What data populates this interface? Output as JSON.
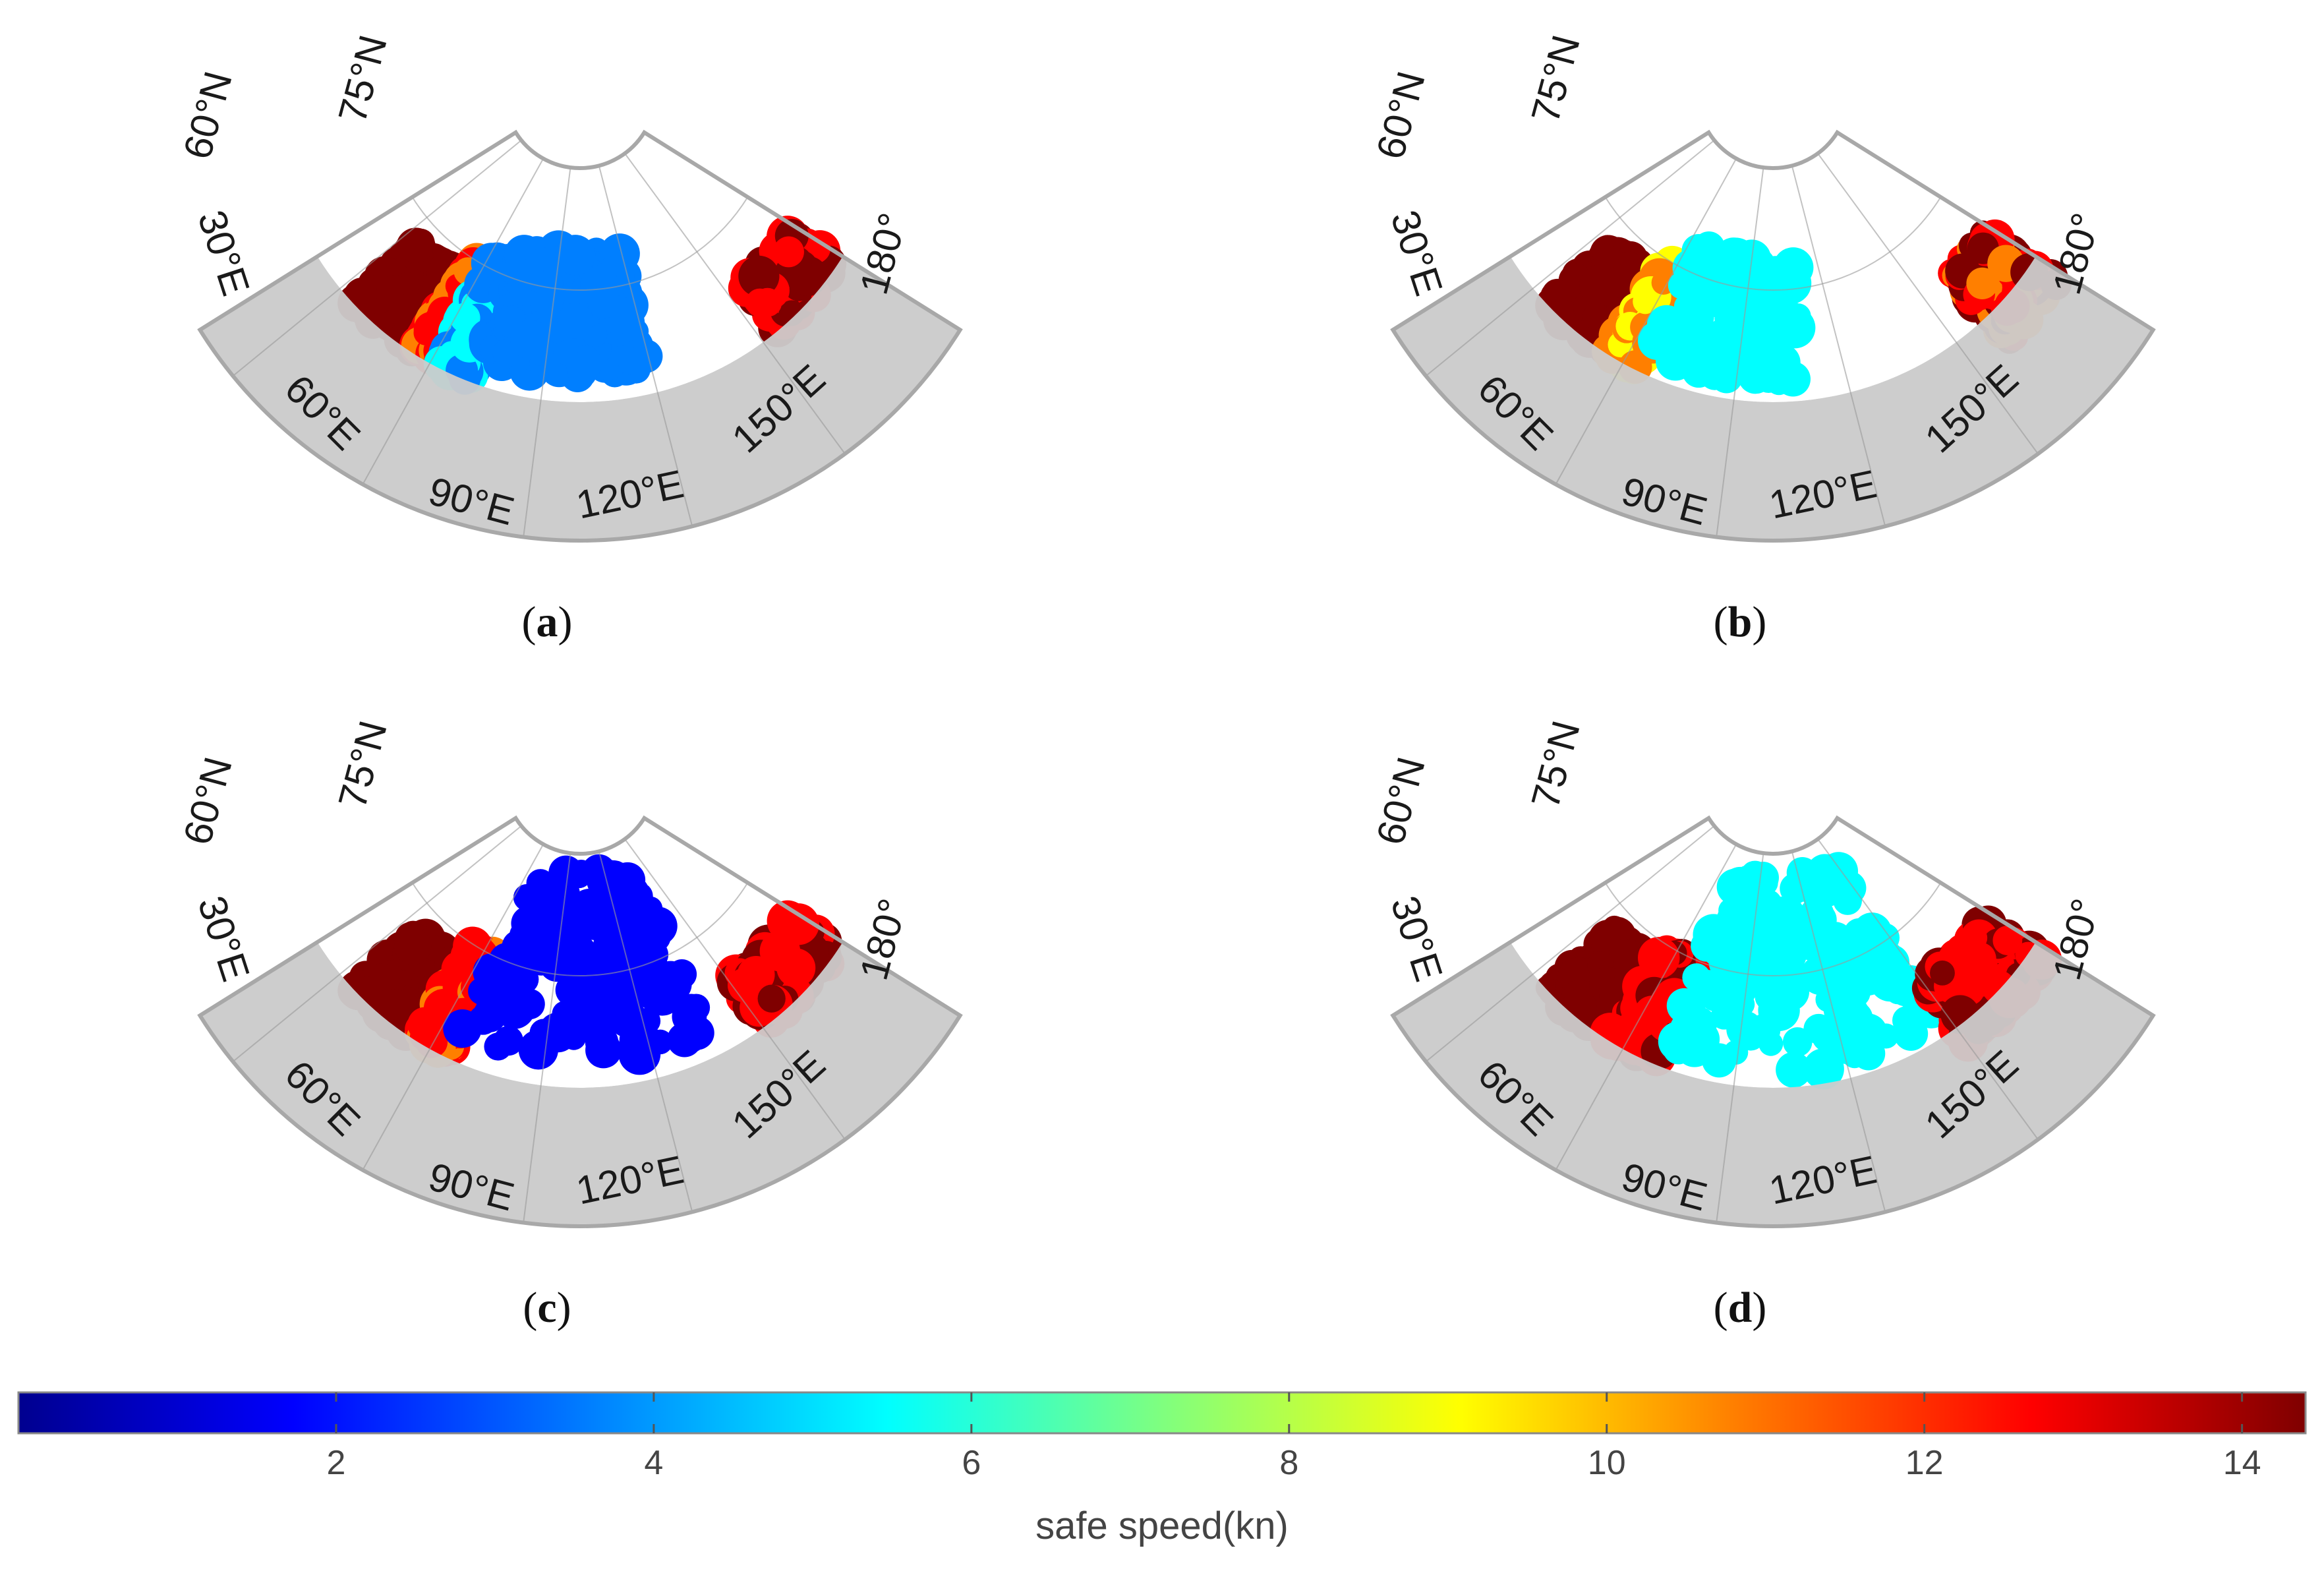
{
  "figure": {
    "panels": [
      {
        "id": "a",
        "caption_letter": "a",
        "lat_labels": [
          "60°N",
          "75°N"
        ],
        "lon_labels": [
          "30°E",
          "60°E",
          "90°E",
          "120°E",
          "150°E",
          "180°"
        ]
      },
      {
        "id": "b",
        "caption_letter": "b",
        "lat_labels": [
          "60°N",
          "75°N"
        ],
        "lon_labels": [
          "30°E",
          "60°E",
          "90°E",
          "120°E",
          "150°E",
          "180°"
        ]
      },
      {
        "id": "c",
        "caption_letter": "c",
        "lat_labels": [
          "60°N",
          "75°N"
        ],
        "lon_labels": [
          "30°E",
          "60°E",
          "90°E",
          "120°E",
          "150°E",
          "180°"
        ]
      },
      {
        "id": "d",
        "caption_letter": "d",
        "lat_labels": [
          "60°N",
          "75°N"
        ],
        "lon_labels": [
          "30°E",
          "60°E",
          "90°E",
          "120°E",
          "150°E",
          "180°"
        ]
      }
    ],
    "colorbar": {
      "title": "safe speed(kn)",
      "min": 0,
      "max": 14.4,
      "ticks": [
        "2",
        "4",
        "6",
        "8",
        "10",
        "12",
        "14"
      ],
      "tick_values": [
        2,
        4,
        6,
        8,
        10,
        12,
        14
      ],
      "colors": [
        "#00008f",
        "#0000ff",
        "#007fff",
        "#00ffff",
        "#7fff7f",
        "#ffff00",
        "#ff7f00",
        "#ff0000",
        "#7f0000"
      ]
    },
    "colors": {
      "land": "#cccccc",
      "ocean_open": "#ffffff",
      "frame": "#a8a8a8",
      "grid": "#9a9a9a"
    }
  }
}
